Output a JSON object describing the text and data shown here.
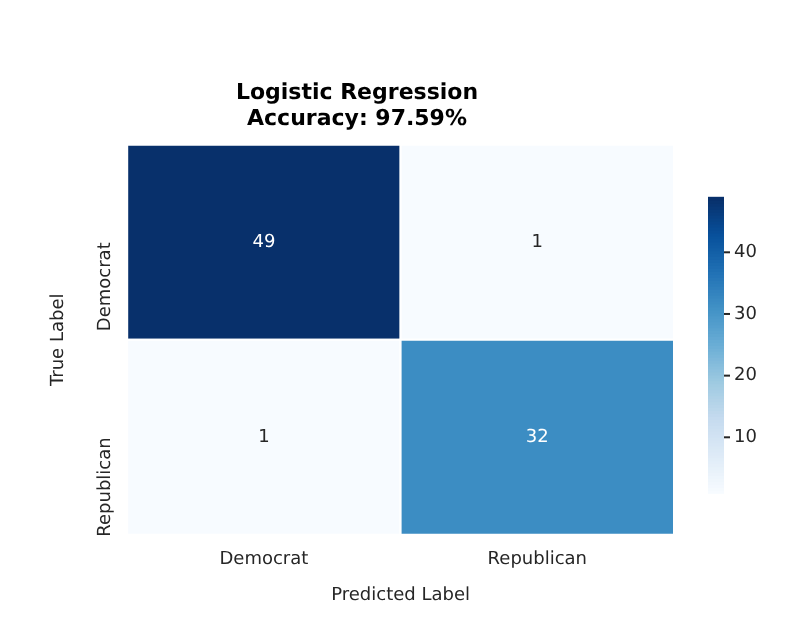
{
  "chart_data": {
    "type": "heatmap",
    "title": "Logistic Regression\nAccuracy: 97.59%",
    "xlabel": "Predicted Label",
    "ylabel": "True Label",
    "categories": [
      "Democrat",
      "Republican"
    ],
    "y_categories": [
      "Democrat",
      "Republican"
    ],
    "cells": [
      [
        49,
        1
      ],
      [
        1,
        32
      ]
    ],
    "clim": [
      1,
      49
    ],
    "cticks": [
      10,
      20,
      30,
      40
    ],
    "data_labels": true,
    "legend": false,
    "grid": false
  }
}
